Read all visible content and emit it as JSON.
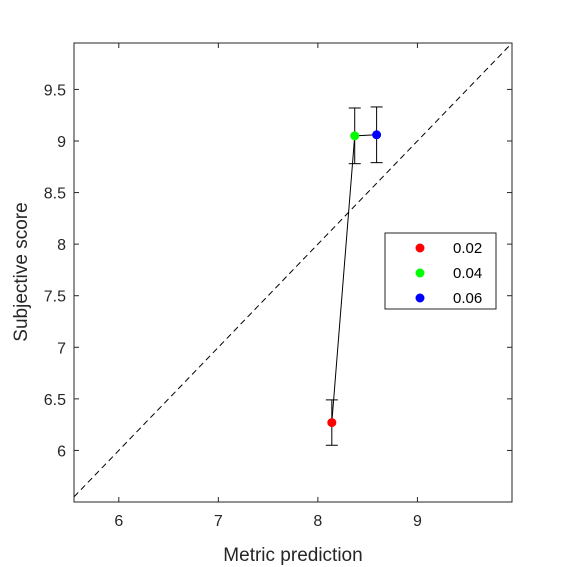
{
  "chart_data": {
    "type": "scatter",
    "title": "",
    "xlabel": "Metric prediction",
    "ylabel": "Subjective score",
    "xlim": [
      5.55,
      9.95
    ],
    "ylim": [
      5.5,
      9.95
    ],
    "xticks": [
      "6",
      "7",
      "8",
      "9"
    ],
    "yticks": [
      "6",
      "6.5",
      "7",
      "7.5",
      "8",
      "8.5",
      "9",
      "9.5"
    ],
    "grid": false,
    "legend_position": "right",
    "reference_line": "diagonal y = x, dashed",
    "connecting_line": true,
    "series": [
      {
        "name": "0.02",
        "color": "#ff0000",
        "x": 8.14,
        "y": 6.27,
        "err_low": 6.05,
        "err_high": 6.49
      },
      {
        "name": "0.04",
        "color": "#00ff00",
        "x": 8.37,
        "y": 9.05,
        "err_low": 8.78,
        "err_high": 9.32
      },
      {
        "name": "0.06",
        "color": "#0000ff",
        "x": 8.59,
        "y": 9.06,
        "err_low": 8.79,
        "err_high": 9.33
      }
    ]
  }
}
